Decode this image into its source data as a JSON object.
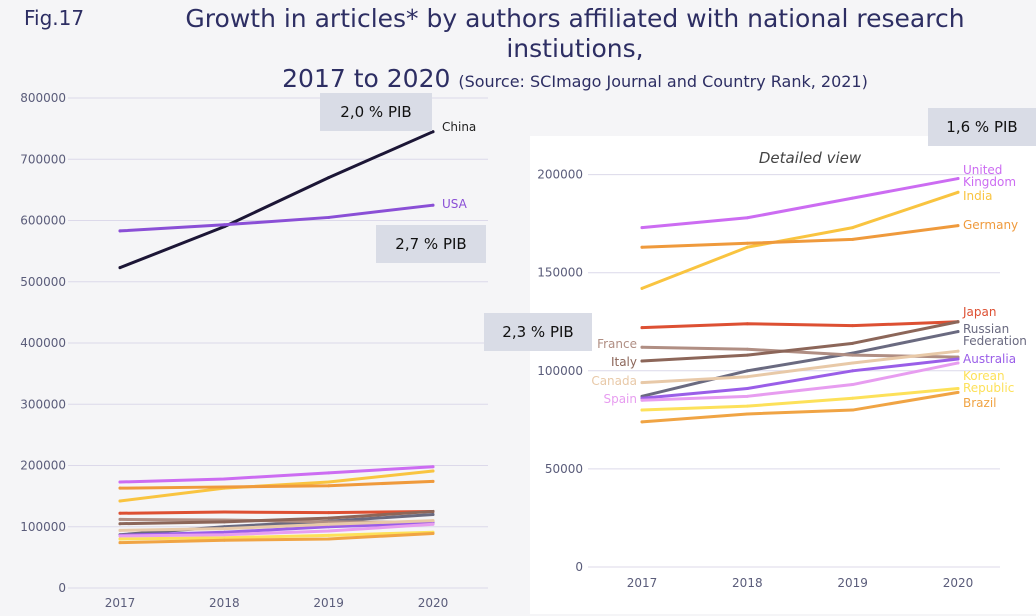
{
  "header": {
    "fig_label": "Fig.17",
    "title_line1": "Growth in articles* by authors affiliated with national research instiutions,",
    "title_line2": "2017 to 2020",
    "source": "(Source: SCImago Journal and Country Rank, 2021)"
  },
  "pib_boxes": {
    "china": "2,0 % PIB",
    "usa": "2,7 % PIB",
    "middle": "2,3 % PIB",
    "uk": "1,6 % PIB"
  },
  "chart_data": [
    {
      "type": "line",
      "x": [
        "2017",
        "2018",
        "2019",
        "2020"
      ],
      "ylim": [
        0,
        800000
      ],
      "yticks": [
        "0",
        "100000",
        "200000",
        "300000",
        "400000",
        "500000",
        "600000",
        "700000",
        "800000"
      ],
      "grid": true,
      "series": [
        {
          "name": "China",
          "color": "#1c1636",
          "values": [
            523000,
            590000,
            670000,
            745000
          ]
        },
        {
          "name": "USA",
          "color": "#8a4fd6",
          "values": [
            583000,
            593000,
            605000,
            625000
          ]
        },
        {
          "name": "United Kingdom",
          "color": "#cc6cf2",
          "values": [
            173000,
            178000,
            188000,
            198000
          ]
        },
        {
          "name": "India",
          "color": "#f9c440",
          "values": [
            142000,
            163000,
            173000,
            191000
          ]
        },
        {
          "name": "Germany",
          "color": "#ef9a3c",
          "values": [
            163000,
            165000,
            167000,
            174000
          ]
        },
        {
          "name": "Japan",
          "color": "#dd5033",
          "values": [
            122000,
            124000,
            123000,
            125000
          ]
        },
        {
          "name": "Russian Federation",
          "color": "#6a6a80",
          "values": [
            87000,
            100000,
            109000,
            120000
          ]
        },
        {
          "name": "France",
          "color": "#b08e83",
          "values": [
            112000,
            111000,
            108000,
            107000
          ]
        },
        {
          "name": "Italy",
          "color": "#8c6659",
          "values": [
            105000,
            108000,
            114000,
            125000
          ]
        },
        {
          "name": "Australia",
          "color": "#9a5ee8",
          "values": [
            86000,
            91000,
            100000,
            106000
          ]
        },
        {
          "name": "Canada",
          "color": "#e8c9a8",
          "values": [
            94000,
            97000,
            104000,
            110000
          ]
        },
        {
          "name": "Korean Republic",
          "color": "#fde15a",
          "values": [
            80000,
            82000,
            86000,
            91000
          ]
        },
        {
          "name": "Spain",
          "color": "#e79df0",
          "values": [
            85000,
            87000,
            93000,
            104000
          ]
        },
        {
          "name": "Brazil",
          "color": "#f0a444",
          "values": [
            74000,
            78000,
            80000,
            89000
          ]
        }
      ]
    },
    {
      "type": "line",
      "title": "Detailed view",
      "x": [
        "2017",
        "2018",
        "2019",
        "2020"
      ],
      "ylim": [
        0,
        210000
      ],
      "yticks": [
        "0",
        "50000",
        "100000",
        "150000",
        "200000"
      ],
      "grid": true,
      "series": [
        {
          "name": "United Kingdom",
          "color": "#cc6cf2",
          "values": [
            173000,
            178000,
            188000,
            198000
          ]
        },
        {
          "name": "India",
          "color": "#f9c440",
          "values": [
            142000,
            163000,
            173000,
            191000
          ]
        },
        {
          "name": "Germany",
          "color": "#ef9a3c",
          "values": [
            163000,
            165000,
            167000,
            174000
          ]
        },
        {
          "name": "Japan",
          "color": "#dd5033",
          "values": [
            122000,
            124000,
            123000,
            125000
          ]
        },
        {
          "name": "Russian Federation",
          "color": "#6a6a80",
          "values": [
            87000,
            100000,
            109000,
            120000
          ]
        },
        {
          "name": "France",
          "color": "#b08e83",
          "values": [
            112000,
            111000,
            108000,
            107000
          ]
        },
        {
          "name": "Italy",
          "color": "#8c6659",
          "values": [
            105000,
            108000,
            114000,
            125000
          ]
        },
        {
          "name": "Australia",
          "color": "#9a5ee8",
          "values": [
            86000,
            91000,
            100000,
            106000
          ]
        },
        {
          "name": "Canada",
          "color": "#e8c9a8",
          "values": [
            94000,
            97000,
            104000,
            110000
          ]
        },
        {
          "name": "Korean Republic",
          "color": "#fde15a",
          "values": [
            80000,
            82000,
            86000,
            91000
          ]
        },
        {
          "name": "Spain",
          "color": "#e79df0",
          "values": [
            85000,
            87000,
            93000,
            104000
          ]
        },
        {
          "name": "Brazil",
          "color": "#f0a444",
          "values": [
            74000,
            78000,
            80000,
            89000
          ]
        }
      ]
    }
  ]
}
